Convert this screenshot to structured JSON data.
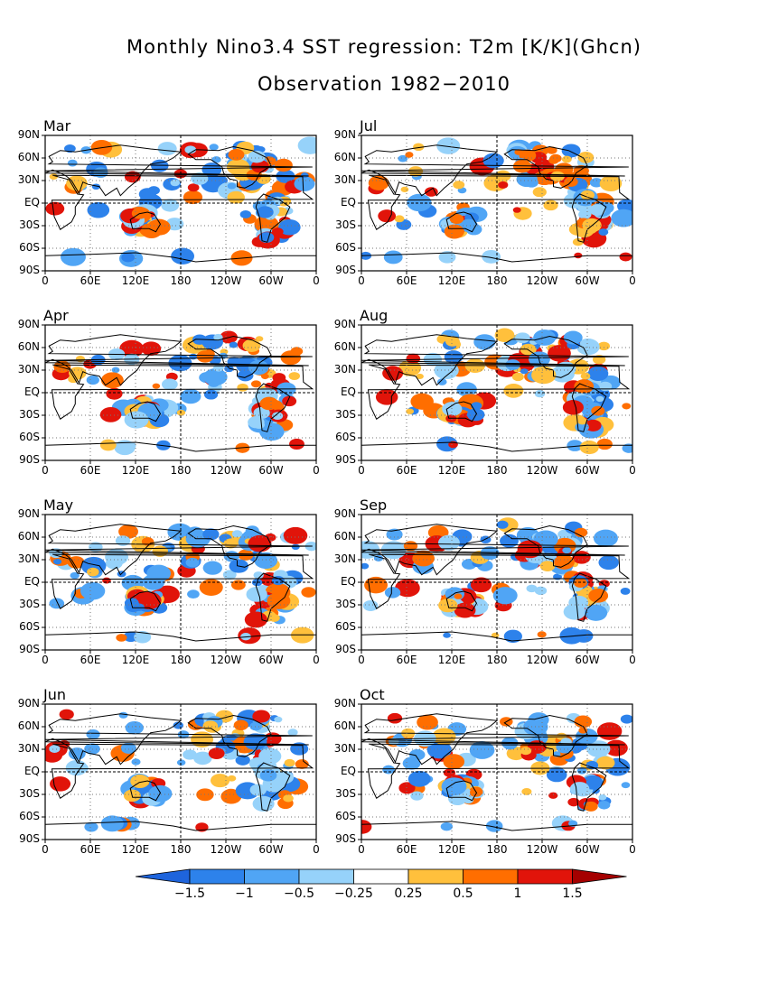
{
  "title": "Monthly Nino3.4 SST regression: T2m [K/K](Ghcn)",
  "subtitle": "Observation 1982−2010",
  "lat_ticks": [
    "90N",
    "60N",
    "30N",
    "EQ",
    "30S",
    "60S",
    "90S"
  ],
  "lon_ticks": [
    "0",
    "60E",
    "120E",
    "180",
    "120W",
    "60W",
    "0"
  ],
  "panels": [
    {
      "month": "Mar"
    },
    {
      "month": "Jul"
    },
    {
      "month": "Apr"
    },
    {
      "month": "Aug"
    },
    {
      "month": "May"
    },
    {
      "month": "Sep"
    },
    {
      "month": "Jun"
    },
    {
      "month": "Oct"
    }
  ],
  "colorbar": {
    "labels": [
      "−1.5",
      "−1",
      "−0.5",
      "−0.25",
      "0.25",
      "0.5",
      "1",
      "1.5"
    ],
    "colors": [
      "#1e64dc",
      "#2d82eb",
      "#50a5f5",
      "#96d2fa",
      "#ffffff",
      "#ffc03c",
      "#ff6e00",
      "#e1140a",
      "#a50000"
    ]
  }
}
